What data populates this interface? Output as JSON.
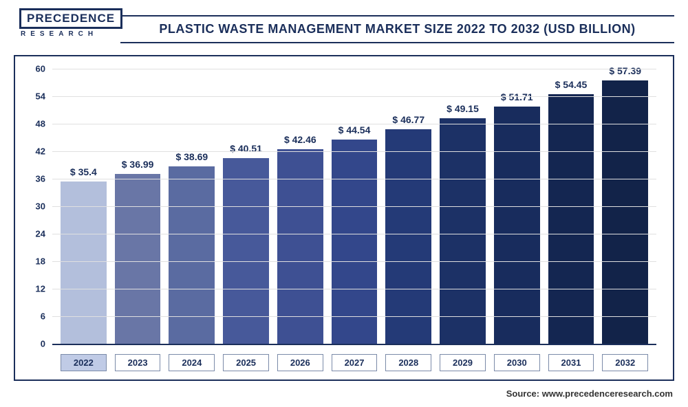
{
  "logo": {
    "main": "PRECEDENCE",
    "sub": "RESEARCH"
  },
  "title": "PLASTIC WASTE MANAGEMENT MARKET SIZE 2022 TO 2032 (USD BILLION)",
  "source": "Source: www.precedenceresearch.com",
  "chart": {
    "type": "bar",
    "categories": [
      "2022",
      "2023",
      "2024",
      "2025",
      "2026",
      "2027",
      "2028",
      "2029",
      "2030",
      "2031",
      "2032"
    ],
    "values": [
      35.4,
      36.99,
      38.69,
      40.51,
      42.46,
      44.54,
      46.77,
      49.15,
      51.71,
      54.45,
      57.39
    ],
    "value_labels": [
      "$ 35.4",
      "$ 36.99",
      "$ 38.69",
      "$ 40.51",
      "$ 42.46",
      "$ 44.54",
      "$ 46.77",
      "$ 49.15",
      "$ 51.71",
      "$ 54.45",
      "$ 57.39"
    ],
    "bar_colors": [
      "#b3bfdc",
      "#6976a6",
      "#5a6ba1",
      "#47599a",
      "#3e5093",
      "#33478b",
      "#243a77",
      "#1c3166",
      "#182c5d",
      "#142651",
      "#122349"
    ],
    "highlight_index": 0,
    "ylim": [
      0,
      60
    ],
    "ytick_step": 6,
    "yticks": [
      0,
      6,
      12,
      18,
      24,
      30,
      36,
      42,
      48,
      54,
      60
    ],
    "background_color": "#ffffff",
    "grid_color": "#e0e0e0",
    "axis_color": "#1a2e5a",
    "value_fontsize": 14,
    "tick_fontsize": 13,
    "title_fontsize": 18,
    "bar_width": 0.78
  }
}
